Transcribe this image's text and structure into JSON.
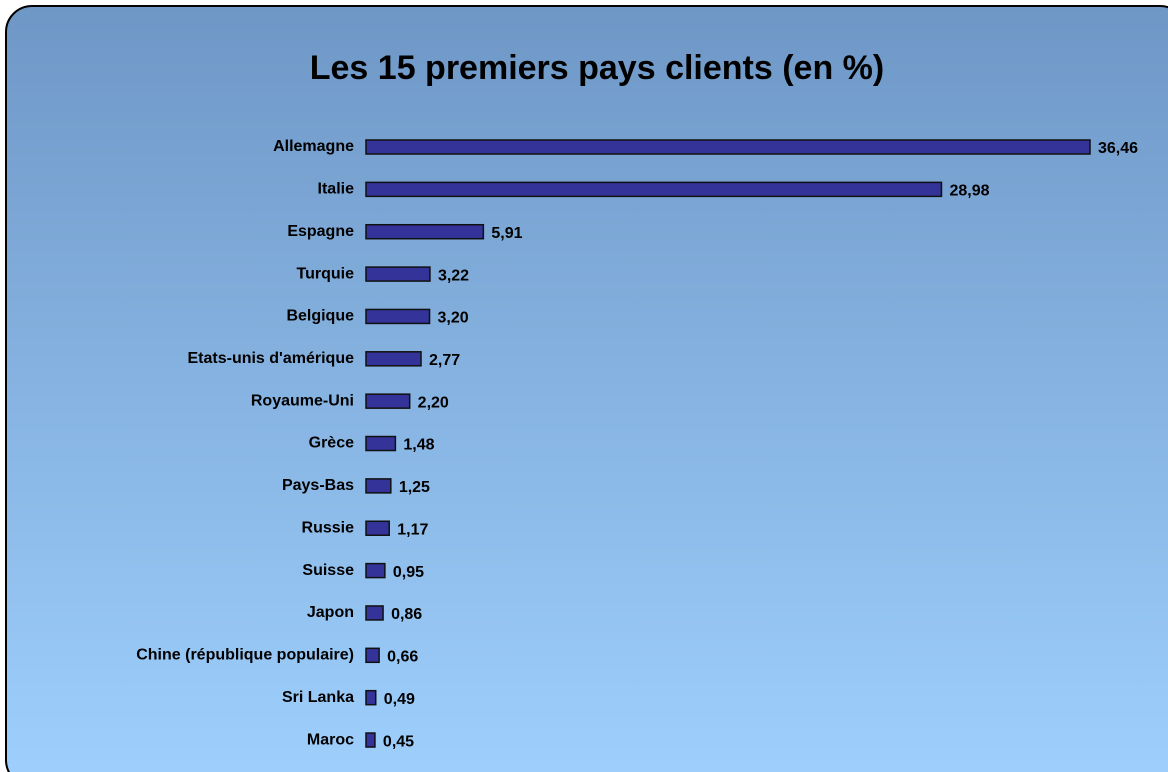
{
  "chart_data": {
    "type": "bar",
    "orientation": "horizontal",
    "title": "Les 15 premiers pays clients (en %)",
    "categories": [
      "Allemagne",
      "Italie",
      "Espagne",
      "Turquie",
      "Belgique",
      "Etats-unis d'amérique",
      "Royaume-Uni",
      "Grèce",
      "Pays-Bas",
      "Russie",
      "Suisse",
      "Japon",
      "Chine (république populaire)",
      "Sri Lanka",
      "Maroc"
    ],
    "values": [
      36.46,
      28.98,
      5.91,
      3.22,
      3.2,
      2.77,
      2.2,
      1.48,
      1.25,
      1.17,
      0.95,
      0.86,
      0.66,
      0.49,
      0.45
    ],
    "value_labels": [
      "36,46",
      "28,98",
      "5,91",
      "3,22",
      "3,20",
      "2,77",
      "2,20",
      "1,48",
      "1,25",
      "1,17",
      "0,95",
      "0,86",
      "0,66",
      "0,49",
      "0,45"
    ],
    "color": "#333399"
  }
}
